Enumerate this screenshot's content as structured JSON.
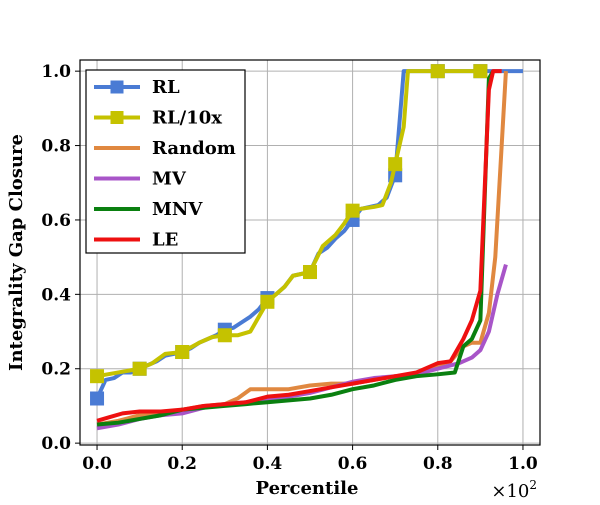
{
  "chart_data": {
    "type": "line",
    "title": "",
    "xlabel": "Percentile",
    "ylabel": "Integrality Gap Closure",
    "x_scale_label": "×10",
    "x_scale_exponent": "2",
    "xlim": [
      -0.04,
      1.04
    ],
    "ylim": [
      -0.005,
      1.03
    ],
    "x_ticks": [
      0.0,
      0.2,
      0.4,
      0.6,
      0.8,
      1.0
    ],
    "x_tick_labels": [
      "0.0",
      "0.2",
      "0.4",
      "0.6",
      "0.8",
      "1.0"
    ],
    "y_ticks": [
      0.0,
      0.2,
      0.4,
      0.6,
      0.8,
      1.0
    ],
    "y_tick_labels": [
      "0.0",
      "0.2",
      "0.4",
      "0.6",
      "0.8",
      "1.0"
    ],
    "grid": true,
    "legend_position": "top-left",
    "series": [
      {
        "name": "RL",
        "color": "#4a7bd4",
        "marker": "square",
        "marker_every": [
          0.0,
          0.1,
          0.2,
          0.3,
          0.4,
          0.5,
          0.6,
          0.7,
          0.8,
          0.9
        ],
        "points": [
          [
            0.0,
            0.12
          ],
          [
            0.02,
            0.17
          ],
          [
            0.04,
            0.175
          ],
          [
            0.06,
            0.19
          ],
          [
            0.08,
            0.19
          ],
          [
            0.1,
            0.2
          ],
          [
            0.12,
            0.21
          ],
          [
            0.14,
            0.22
          ],
          [
            0.16,
            0.235
          ],
          [
            0.18,
            0.24
          ],
          [
            0.2,
            0.245
          ],
          [
            0.22,
            0.255
          ],
          [
            0.24,
            0.27
          ],
          [
            0.26,
            0.28
          ],
          [
            0.28,
            0.29
          ],
          [
            0.3,
            0.305
          ],
          [
            0.32,
            0.31
          ],
          [
            0.34,
            0.325
          ],
          [
            0.36,
            0.34
          ],
          [
            0.38,
            0.36
          ],
          [
            0.4,
            0.39
          ],
          [
            0.42,
            0.4
          ],
          [
            0.44,
            0.42
          ],
          [
            0.46,
            0.45
          ],
          [
            0.48,
            0.455
          ],
          [
            0.5,
            0.46
          ],
          [
            0.52,
            0.51
          ],
          [
            0.54,
            0.525
          ],
          [
            0.56,
            0.55
          ],
          [
            0.58,
            0.57
          ],
          [
            0.6,
            0.6
          ],
          [
            0.62,
            0.63
          ],
          [
            0.64,
            0.635
          ],
          [
            0.66,
            0.64
          ],
          [
            0.68,
            0.66
          ],
          [
            0.7,
            0.72
          ],
          [
            0.72,
            1.0
          ],
          [
            0.8,
            1.0
          ],
          [
            0.9,
            1.0
          ],
          [
            1.0,
            1.0
          ]
        ]
      },
      {
        "name": "RL/10x",
        "color": "#c5c200",
        "marker": "square",
        "marker_every": [
          0.0,
          0.1,
          0.2,
          0.3,
          0.4,
          0.5,
          0.6,
          0.7,
          0.8,
          0.9
        ],
        "points": [
          [
            0.0,
            0.18
          ],
          [
            0.05,
            0.19
          ],
          [
            0.1,
            0.2
          ],
          [
            0.13,
            0.215
          ],
          [
            0.16,
            0.24
          ],
          [
            0.2,
            0.245
          ],
          [
            0.24,
            0.27
          ],
          [
            0.27,
            0.285
          ],
          [
            0.3,
            0.29
          ],
          [
            0.33,
            0.29
          ],
          [
            0.36,
            0.3
          ],
          [
            0.38,
            0.34
          ],
          [
            0.4,
            0.38
          ],
          [
            0.42,
            0.4
          ],
          [
            0.44,
            0.42
          ],
          [
            0.46,
            0.45
          ],
          [
            0.5,
            0.46
          ],
          [
            0.53,
            0.53
          ],
          [
            0.56,
            0.56
          ],
          [
            0.58,
            0.59
          ],
          [
            0.6,
            0.625
          ],
          [
            0.62,
            0.63
          ],
          [
            0.65,
            0.635
          ],
          [
            0.67,
            0.64
          ],
          [
            0.69,
            0.7
          ],
          [
            0.7,
            0.75
          ],
          [
            0.72,
            0.85
          ],
          [
            0.73,
            1.0
          ],
          [
            0.8,
            1.0
          ],
          [
            0.9,
            1.0
          ],
          [
            0.91,
            1.0
          ]
        ]
      },
      {
        "name": "Random",
        "color": "#e08840",
        "marker": "none",
        "points": [
          [
            0.0,
            0.05
          ],
          [
            0.05,
            0.06
          ],
          [
            0.1,
            0.075
          ],
          [
            0.15,
            0.08
          ],
          [
            0.2,
            0.09
          ],
          [
            0.25,
            0.1
          ],
          [
            0.3,
            0.105
          ],
          [
            0.33,
            0.12
          ],
          [
            0.36,
            0.145
          ],
          [
            0.4,
            0.145
          ],
          [
            0.45,
            0.145
          ],
          [
            0.5,
            0.155
          ],
          [
            0.55,
            0.16
          ],
          [
            0.6,
            0.16
          ],
          [
            0.65,
            0.17
          ],
          [
            0.7,
            0.18
          ],
          [
            0.75,
            0.185
          ],
          [
            0.78,
            0.2
          ],
          [
            0.8,
            0.21
          ],
          [
            0.83,
            0.22
          ],
          [
            0.86,
            0.26
          ],
          [
            0.88,
            0.27
          ],
          [
            0.9,
            0.27
          ],
          [
            0.92,
            0.35
          ],
          [
            0.935,
            0.5
          ],
          [
            0.95,
            0.8
          ],
          [
            0.96,
            1.0
          ]
        ]
      },
      {
        "name": "MV",
        "color": "#a855c8",
        "marker": "none",
        "points": [
          [
            0.0,
            0.04
          ],
          [
            0.05,
            0.05
          ],
          [
            0.1,
            0.065
          ],
          [
            0.15,
            0.075
          ],
          [
            0.2,
            0.08
          ],
          [
            0.25,
            0.095
          ],
          [
            0.3,
            0.105
          ],
          [
            0.35,
            0.11
          ],
          [
            0.4,
            0.115
          ],
          [
            0.45,
            0.125
          ],
          [
            0.5,
            0.135
          ],
          [
            0.55,
            0.15
          ],
          [
            0.6,
            0.165
          ],
          [
            0.65,
            0.175
          ],
          [
            0.7,
            0.18
          ],
          [
            0.75,
            0.185
          ],
          [
            0.8,
            0.2
          ],
          [
            0.85,
            0.215
          ],
          [
            0.88,
            0.23
          ],
          [
            0.9,
            0.25
          ],
          [
            0.92,
            0.3
          ],
          [
            0.94,
            0.4
          ],
          [
            0.96,
            0.48
          ]
        ]
      },
      {
        "name": "MNV",
        "color": "#0a8010",
        "marker": "none",
        "points": [
          [
            0.0,
            0.05
          ],
          [
            0.05,
            0.055
          ],
          [
            0.1,
            0.065
          ],
          [
            0.15,
            0.075
          ],
          [
            0.2,
            0.09
          ],
          [
            0.25,
            0.095
          ],
          [
            0.3,
            0.1
          ],
          [
            0.35,
            0.105
          ],
          [
            0.4,
            0.11
          ],
          [
            0.45,
            0.115
          ],
          [
            0.5,
            0.12
          ],
          [
            0.55,
            0.13
          ],
          [
            0.6,
            0.145
          ],
          [
            0.65,
            0.155
          ],
          [
            0.7,
            0.17
          ],
          [
            0.75,
            0.18
          ],
          [
            0.8,
            0.185
          ],
          [
            0.84,
            0.19
          ],
          [
            0.86,
            0.26
          ],
          [
            0.88,
            0.28
          ],
          [
            0.9,
            0.33
          ],
          [
            0.92,
            0.98
          ],
          [
            0.93,
            1.0
          ]
        ]
      },
      {
        "name": "LE",
        "color": "#ee1010",
        "marker": "none",
        "points": [
          [
            0.0,
            0.06
          ],
          [
            0.03,
            0.07
          ],
          [
            0.06,
            0.08
          ],
          [
            0.1,
            0.085
          ],
          [
            0.15,
            0.085
          ],
          [
            0.2,
            0.09
          ],
          [
            0.25,
            0.1
          ],
          [
            0.3,
            0.105
          ],
          [
            0.35,
            0.11
          ],
          [
            0.4,
            0.125
          ],
          [
            0.45,
            0.13
          ],
          [
            0.5,
            0.14
          ],
          [
            0.55,
            0.15
          ],
          [
            0.6,
            0.16
          ],
          [
            0.65,
            0.17
          ],
          [
            0.7,
            0.18
          ],
          [
            0.75,
            0.19
          ],
          [
            0.8,
            0.215
          ],
          [
            0.83,
            0.22
          ],
          [
            0.86,
            0.28
          ],
          [
            0.88,
            0.33
          ],
          [
            0.9,
            0.41
          ],
          [
            0.92,
            0.95
          ],
          [
            0.93,
            1.0
          ],
          [
            0.95,
            1.0
          ]
        ]
      }
    ]
  }
}
